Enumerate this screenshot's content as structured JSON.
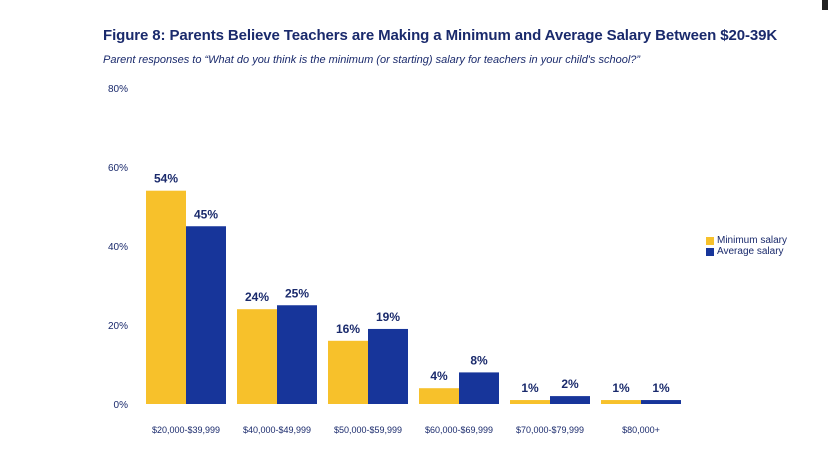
{
  "colors": {
    "minimum": "#f7c12b",
    "average": "#17359a",
    "text": "#1a2a6c"
  },
  "chart_data": {
    "type": "bar",
    "title": "Figure 8: Parents Believe Teachers are Making a Minimum and Average Salary Between $20-39K",
    "subtitle": "Parent responses to “What do you think is the minimum (or starting) salary for teachers in your child's school?”",
    "categories": [
      "$20,000-$39,999",
      "$40,000-$49,999",
      "$50,000-$59,999",
      "$60,000-$69,999",
      "$70,000-$79,999",
      "$80,000+"
    ],
    "series": [
      {
        "name": "Minimum salary",
        "values": [
          54,
          24,
          16,
          4,
          1,
          1
        ],
        "labels": [
          "54%",
          "24%",
          "16%",
          "4%",
          "1%",
          "1%"
        ]
      },
      {
        "name": "Average salary",
        "values": [
          45,
          25,
          19,
          8,
          2,
          1
        ],
        "labels": [
          "45%",
          "25%",
          "19%",
          "8%",
          "2%",
          "1%"
        ]
      }
    ],
    "y_ticks": [
      0,
      20,
      40,
      60,
      80
    ],
    "y_tick_labels": [
      "0%",
      "20%",
      "40%",
      "60%",
      "80%"
    ],
    "ylim": [
      0,
      80
    ],
    "xlabel": "",
    "ylabel": "",
    "grid": false,
    "legend_position": "right"
  }
}
